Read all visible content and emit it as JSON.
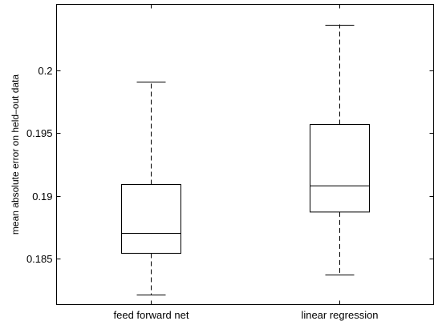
{
  "chart_data": {
    "type": "box",
    "title": "",
    "xlabel": "",
    "ylabel": "mean absolute error on held–out data",
    "ylim": [
      0.1813,
      0.2053
    ],
    "yticks": [
      0.185,
      0.19,
      0.195,
      0.2
    ],
    "ytick_labels": [
      "0.185",
      "0.19",
      "0.195",
      "0.2"
    ],
    "categories": [
      "feed forward net",
      "linear regression"
    ],
    "boxes": [
      {
        "whisker_low": 0.1821,
        "q1": 0.1854,
        "median": 0.187,
        "q3": 0.1909,
        "whisker_high": 0.1991
      },
      {
        "whisker_low": 0.1837,
        "q1": 0.1887,
        "median": 0.1908,
        "q3": 0.1957,
        "whisker_high": 0.2037
      }
    ],
    "grid": false,
    "legend": "none"
  }
}
